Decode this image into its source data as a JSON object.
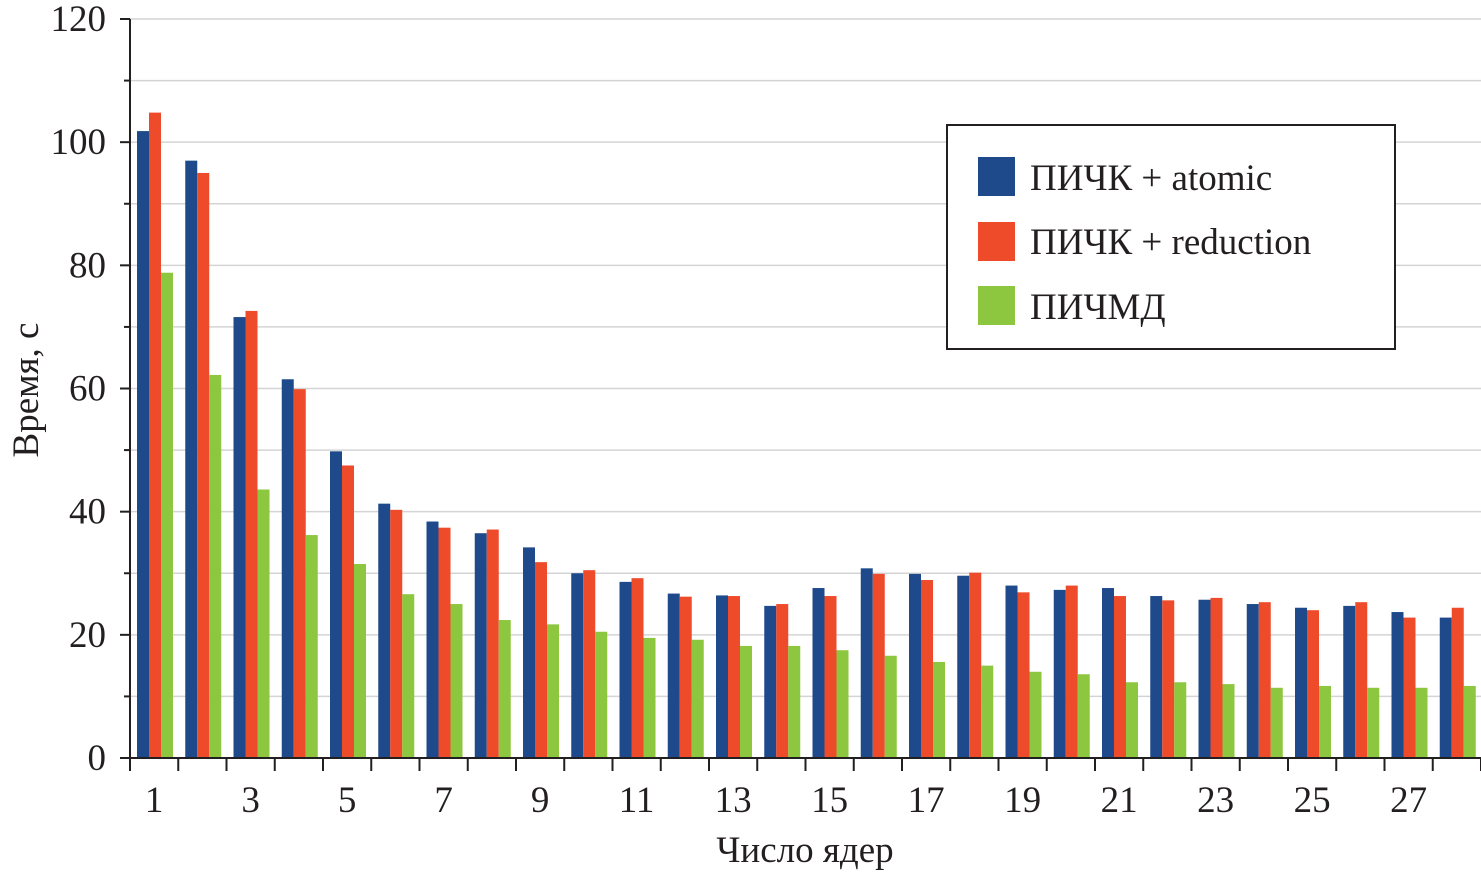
{
  "chart_data": {
    "type": "bar",
    "xlabel": "Число ядер",
    "ylabel": "Время, с",
    "ylim": [
      0,
      120
    ],
    "yticks": [
      "0",
      "20",
      "40",
      "60",
      "80",
      "100",
      "120"
    ],
    "grid": "horizontal, every 10",
    "legend_position": "top-right",
    "categories": [
      1,
      2,
      3,
      4,
      5,
      6,
      7,
      8,
      9,
      10,
      11,
      12,
      13,
      14,
      15,
      16,
      17,
      18,
      19,
      20,
      21,
      22,
      23,
      24,
      25,
      26,
      27,
      28
    ],
    "xtick_labels": [
      "1",
      "3",
      "5",
      "7",
      "9",
      "11",
      "13",
      "15",
      "17",
      "19",
      "21",
      "23",
      "25",
      "27"
    ],
    "series": [
      {
        "name": "ПИЧК + atomic",
        "color": "#1e4a8b",
        "values": [
          101.8,
          97.0,
          71.6,
          61.5,
          49.8,
          41.3,
          38.4,
          36.5,
          34.2,
          30.0,
          28.6,
          26.7,
          26.4,
          24.7,
          27.6,
          30.8,
          29.9,
          29.6,
          28.0,
          27.3,
          27.6,
          26.3,
          25.7,
          25.0,
          24.4,
          24.7,
          23.7,
          22.8
        ]
      },
      {
        "name": "ПИЧК + reduction",
        "color": "#ee4b2b",
        "values": [
          104.8,
          95.0,
          72.6,
          59.9,
          47.5,
          40.3,
          37.4,
          37.1,
          31.8,
          30.5,
          29.2,
          26.2,
          26.3,
          25.0,
          26.3,
          29.9,
          28.9,
          30.1,
          26.9,
          28.0,
          26.3,
          25.6,
          26.0,
          25.3,
          24.0,
          25.3,
          22.8,
          24.4
        ]
      },
      {
        "name": "ПИЧМД",
        "color": "#8dc63f",
        "values": [
          78.8,
          62.2,
          43.6,
          36.2,
          31.5,
          26.6,
          25.0,
          22.4,
          21.7,
          20.5,
          19.5,
          19.2,
          18.2,
          18.2,
          17.5,
          16.6,
          15.6,
          15.0,
          14.0,
          13.6,
          12.3,
          12.3,
          12.0,
          11.4,
          11.7,
          11.4,
          11.4,
          11.7
        ]
      }
    ]
  }
}
